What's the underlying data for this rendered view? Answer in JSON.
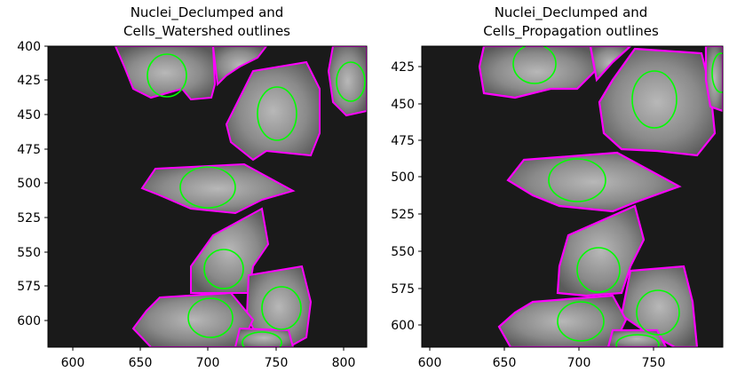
{
  "figure": {
    "panels": [
      {
        "title_line1": "Nuclei_Declumped and",
        "title_line2": "Cells_Watershed outlines",
        "x_ticks": [
          "600",
          "650",
          "700",
          "750",
          "800"
        ],
        "y_ticks": [
          "400",
          "425",
          "450",
          "475",
          "500",
          "525",
          "550",
          "575",
          "600"
        ]
      },
      {
        "title_line1": "Nuclei_Declumped and",
        "title_line2": "Cells_Propagation outlines",
        "x_ticks": [
          "600",
          "650",
          "700",
          "750"
        ],
        "y_ticks": [
          "425",
          "450",
          "475",
          "500",
          "525",
          "550",
          "575",
          "600"
        ]
      }
    ],
    "colors": {
      "background": "#1a1a1a",
      "cell_outline": "#ff00ff",
      "nucleus_outline": "#00ff00",
      "cell_fill": "#8a8a8a"
    }
  }
}
